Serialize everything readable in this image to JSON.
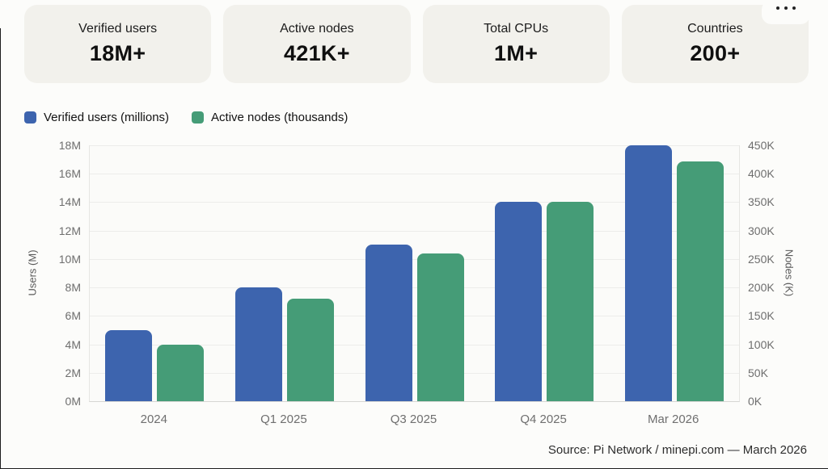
{
  "cards": [
    {
      "label": "Verified users",
      "value": "18M+"
    },
    {
      "label": "Active nodes",
      "value": "421K+"
    },
    {
      "label": "Total CPUs",
      "value": "1M+"
    },
    {
      "label": "Countries",
      "value": "200+"
    }
  ],
  "legend": [
    {
      "label": "Verified users (millions)"
    },
    {
      "label": "Active nodes (thousands)"
    }
  ],
  "chart_data": {
    "type": "bar",
    "categories": [
      "2024",
      "Q1 2025",
      "Q3 2025",
      "Q4 2025",
      "Mar 2026"
    ],
    "series": [
      {
        "name": "Verified users (millions)",
        "axis": "left",
        "color": "#3d64ae",
        "values": [
          5,
          8,
          11,
          14,
          18
        ]
      },
      {
        "name": "Active nodes (thousands)",
        "axis": "right",
        "color": "#459c77",
        "values": [
          100,
          180,
          260,
          350,
          421
        ]
      }
    ],
    "left_axis": {
      "label": "Users (M)",
      "min": 0,
      "max": 18,
      "step": 2,
      "suffix": "M"
    },
    "right_axis": {
      "label": "Nodes (K)",
      "min": 0,
      "max": 450,
      "step": 50,
      "suffix": "K"
    },
    "grid": true,
    "legend_position": "top-left"
  },
  "footer": {
    "source": "Source: Pi Network / minepi.com — March 2026"
  }
}
